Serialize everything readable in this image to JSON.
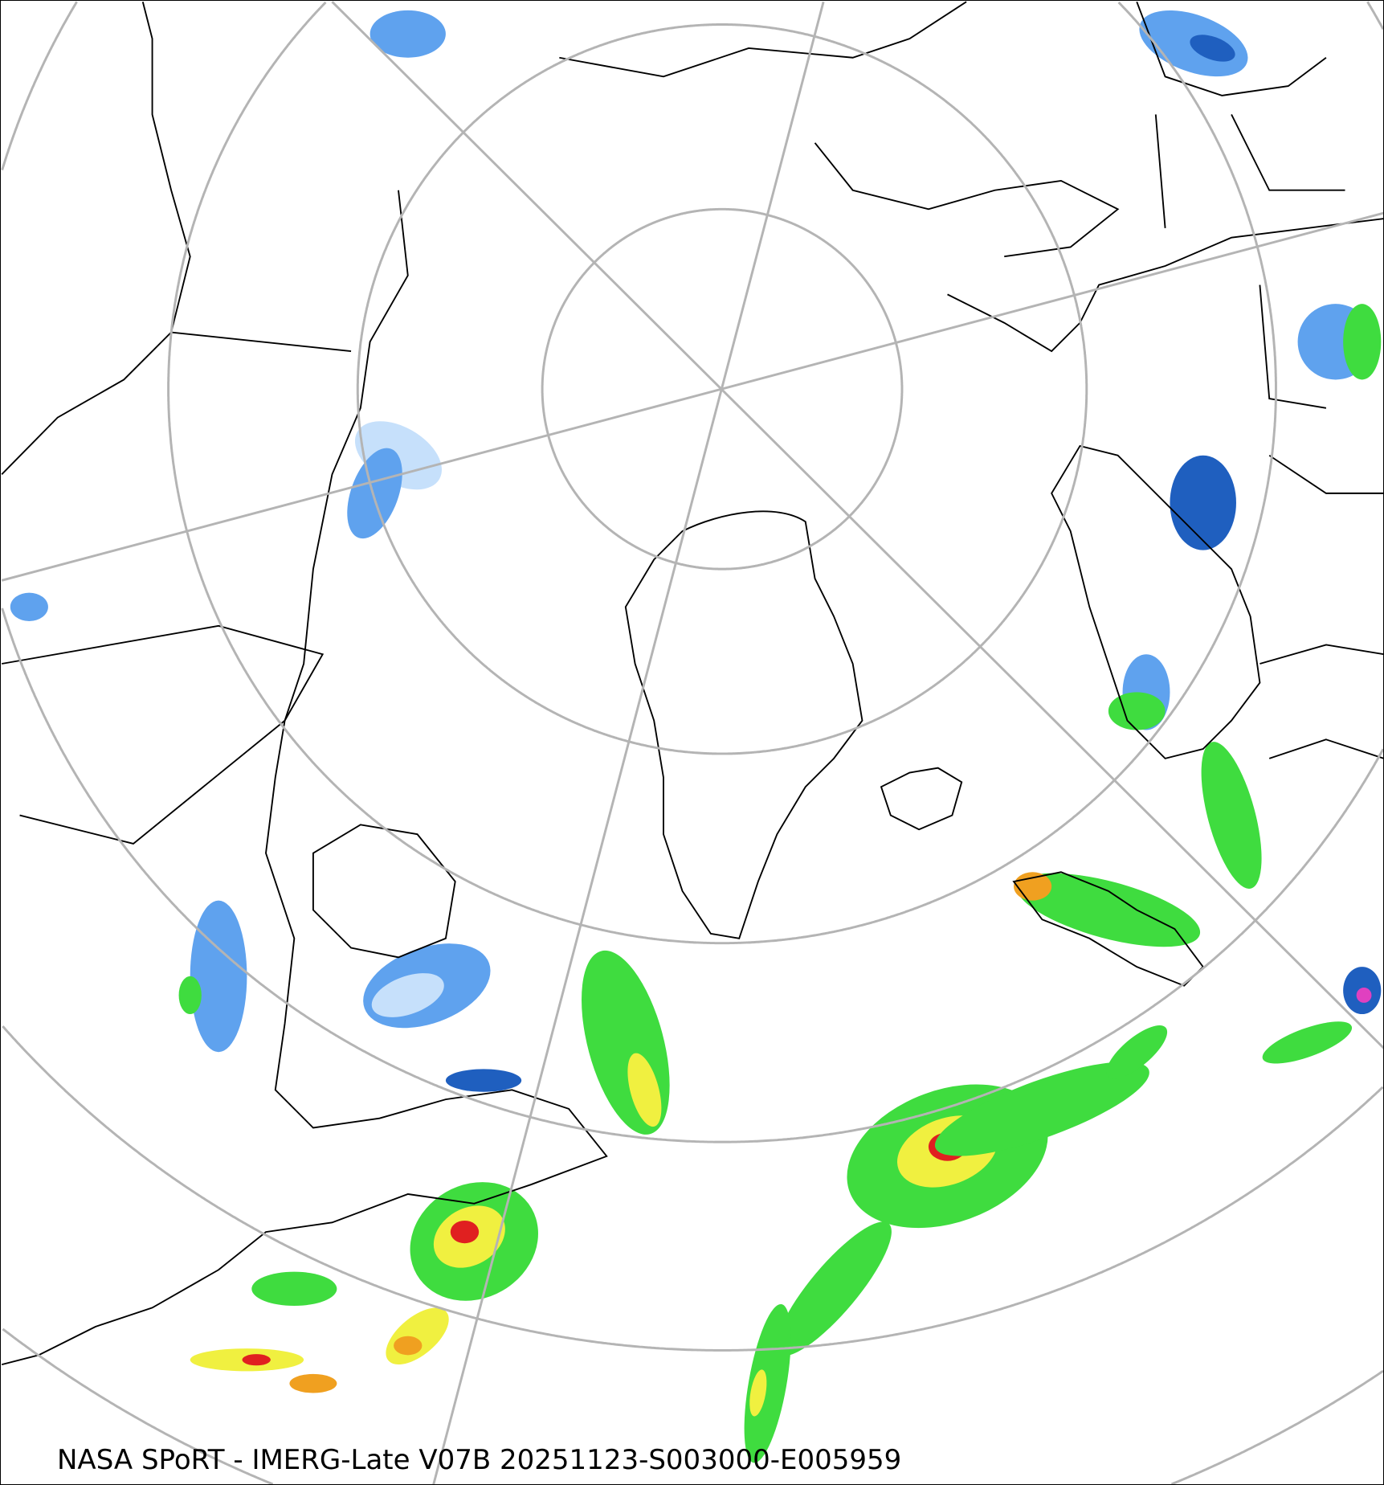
{
  "caption": "NASA SPoRT - IMERG-Late V07B 20251123-S003000-E005959",
  "colors": {
    "grid": "#b4b4b4",
    "coast": "#000000",
    "snow_light": "#c6e0fb",
    "snow_medium": "#5fa2ee",
    "snow_heavy": "#1f5fbf",
    "snow_extreme": "#e040c0",
    "rain_light": "#1e8c1e",
    "rain_medium": "#3fdc3f",
    "rain_moderate": "#f0f040",
    "rain_heavy": "#f0a020",
    "rain_intense": "#e02020"
  }
}
